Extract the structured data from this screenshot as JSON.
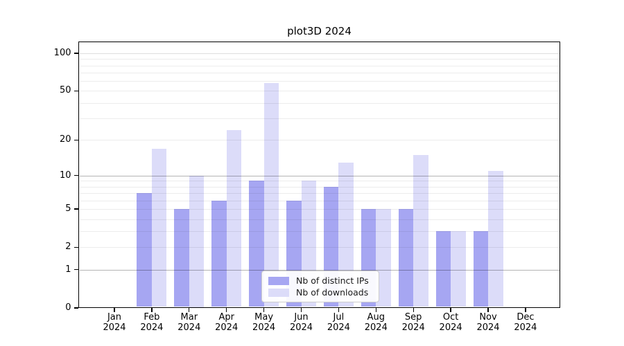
{
  "chart_data": {
    "type": "bar",
    "title": "plot3D 2024",
    "categories": [
      "Jan",
      "Feb",
      "Mar",
      "Apr",
      "May",
      "Jun",
      "Jul",
      "Aug",
      "Sep",
      "Oct",
      "Nov",
      "Dec"
    ],
    "category_year": "2024",
    "series": [
      {
        "name": "Nb of distinct IPs",
        "color": "#a6a6f2",
        "values": [
          0,
          7,
          5,
          6,
          9,
          6,
          8,
          5,
          5,
          3,
          3,
          0
        ]
      },
      {
        "name": "Nb of downloads",
        "color": "#dcdcf9",
        "values": [
          0,
          17,
          10,
          24,
          58,
          9,
          13,
          5,
          15,
          3,
          11,
          0
        ]
      }
    ],
    "y_axis": {
      "scale": "log1p",
      "tick_labels": [
        0,
        1,
        2,
        5,
        10,
        20,
        50,
        100
      ],
      "major_gridlines": [
        1,
        10
      ],
      "minor_gridlines": [
        2,
        3,
        4,
        5,
        6,
        7,
        8,
        9,
        20,
        30,
        40,
        50,
        60,
        70,
        80,
        90,
        100
      ],
      "ylim": [
        0,
        122
      ]
    },
    "legend": {
      "position": "lower center",
      "items": [
        "Nb of distinct IPs",
        "Nb of downloads"
      ]
    },
    "grid": true
  },
  "colors": {
    "major_grid": "#b4b4b4",
    "minor_grid": "#ececec",
    "grid_100": "#dedede",
    "axis": "#000000",
    "legend_border": "#cccccc"
  }
}
